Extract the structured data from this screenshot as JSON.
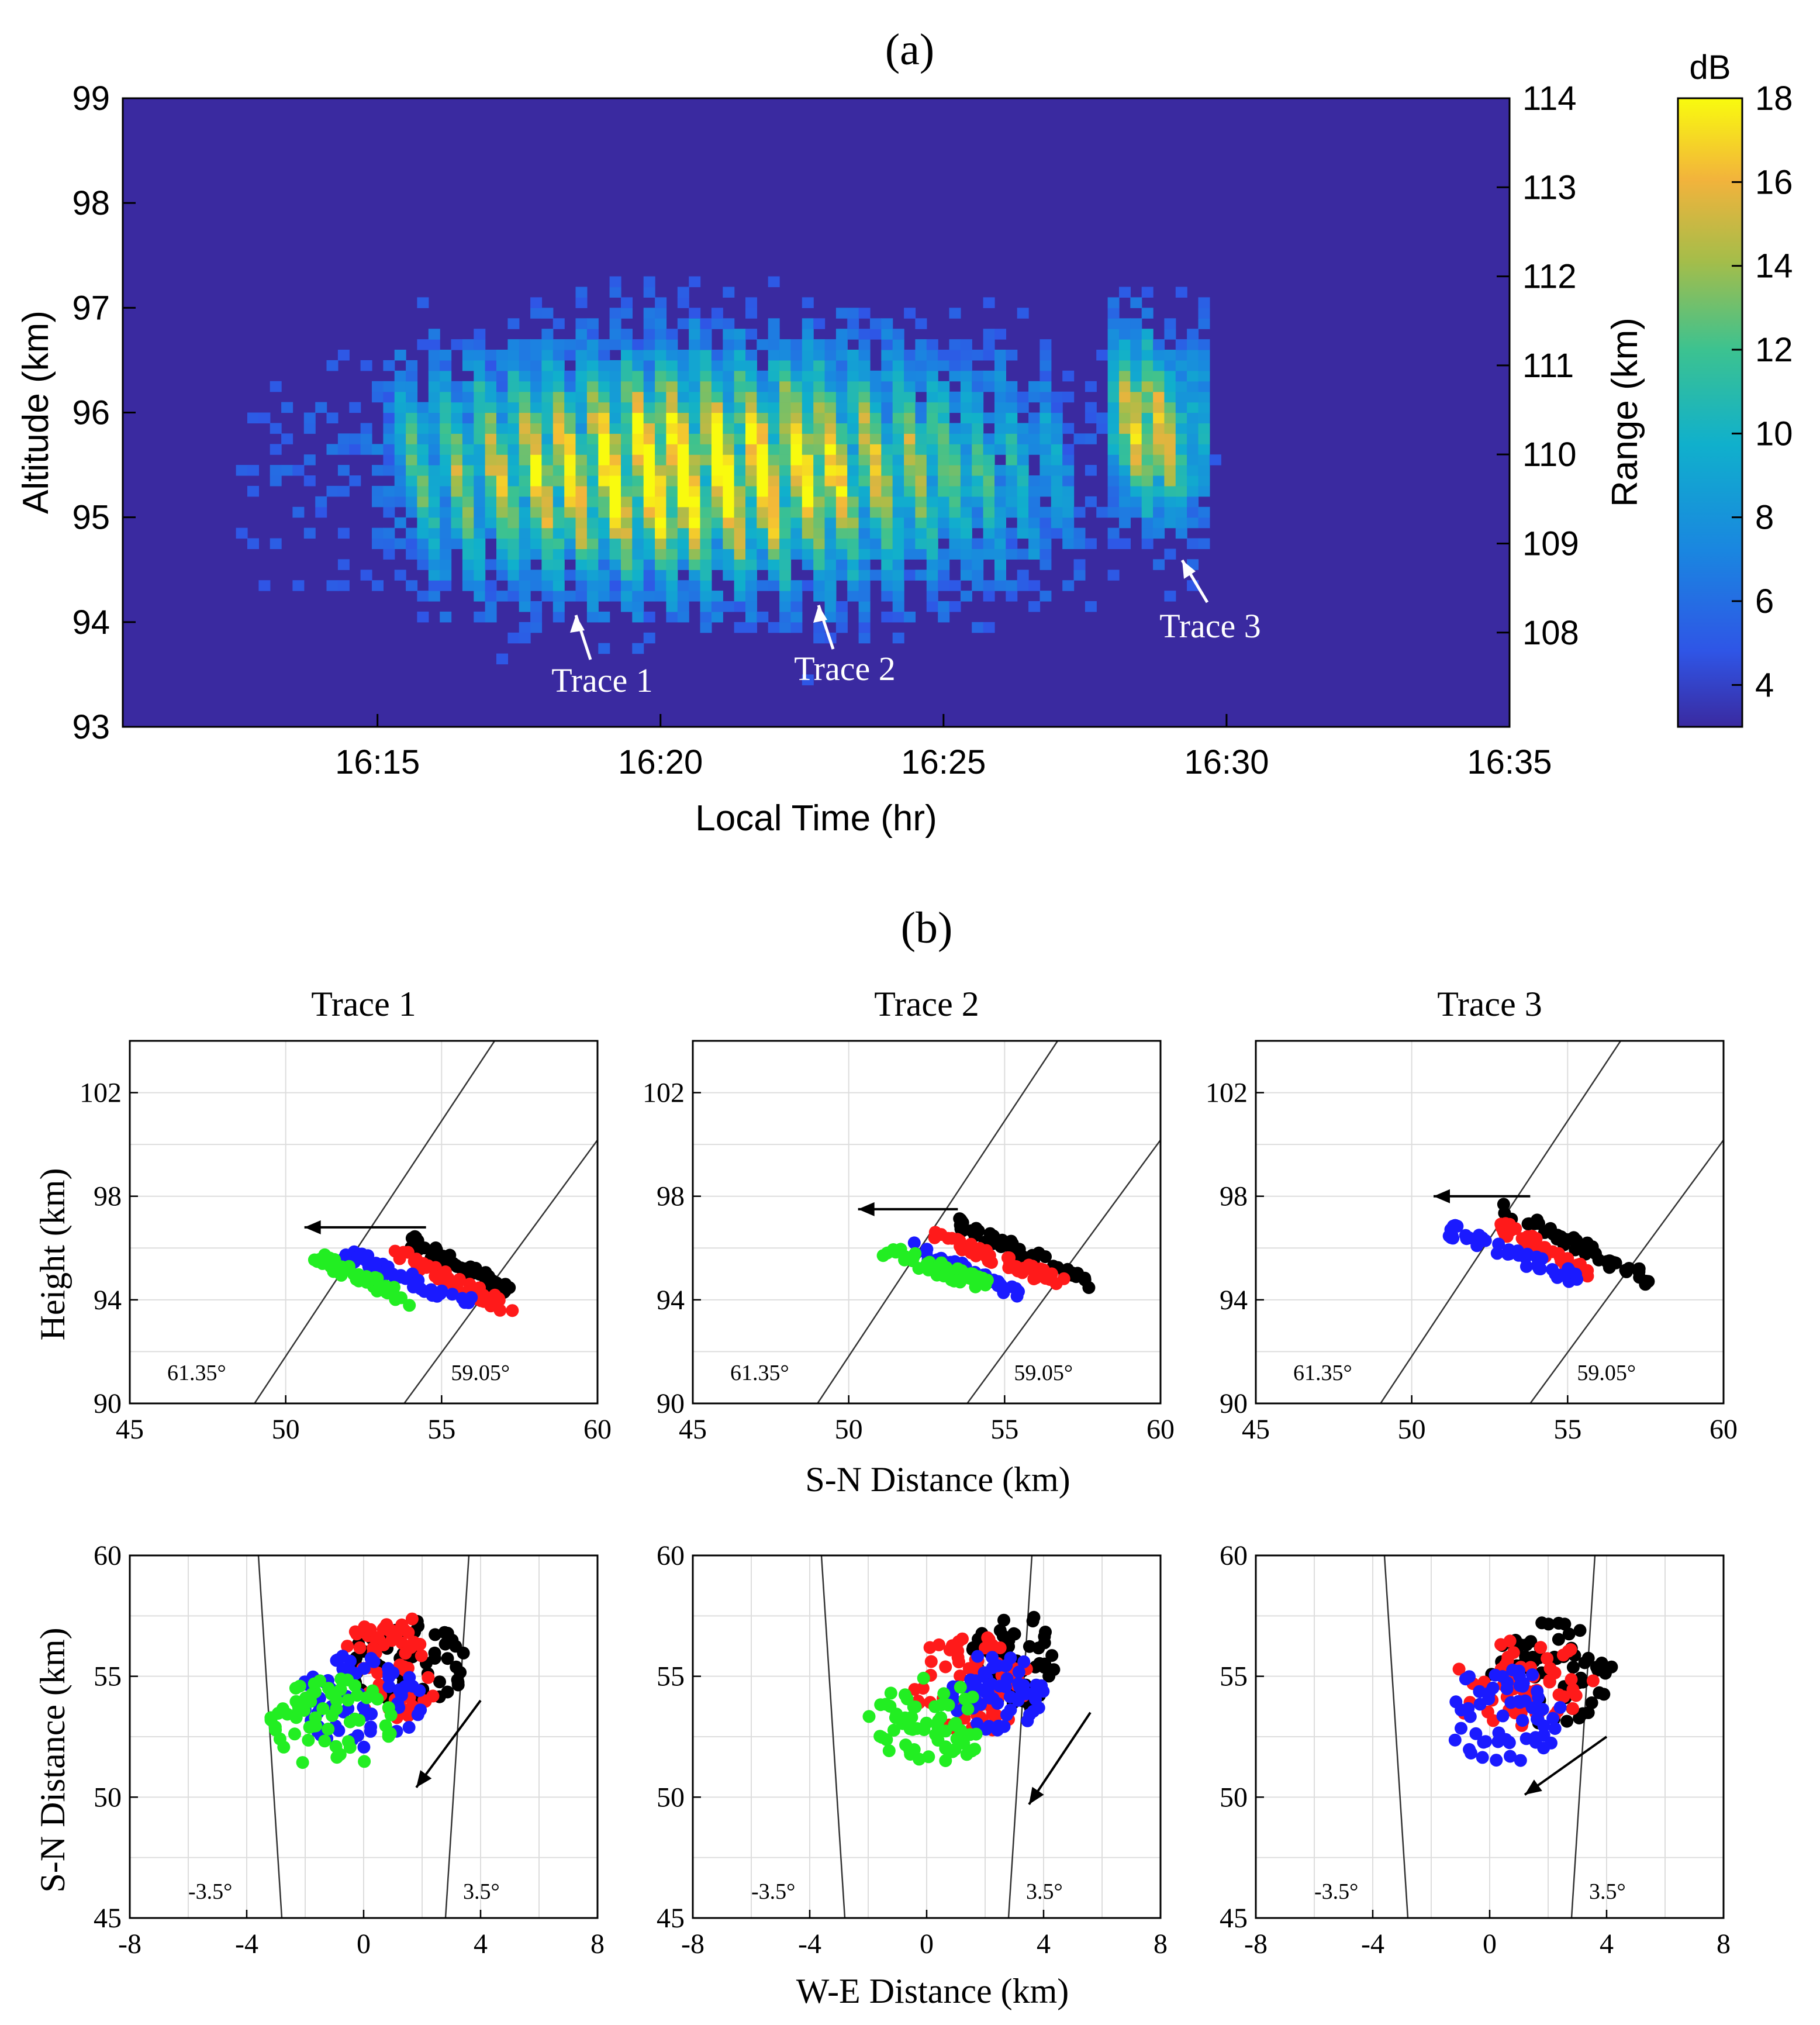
{
  "panel_a": {
    "label": "(a)",
    "left_axis": {
      "label": "Altitude (km)",
      "range": [
        93,
        99
      ],
      "ticks": [
        "93",
        "94",
        "95",
        "96",
        "97",
        "98",
        "99"
      ]
    },
    "right_axis": {
      "label": "Range (km)",
      "ticks": [
        "108",
        "109",
        "110",
        "111",
        "112",
        "113",
        "114"
      ],
      "values": [
        108,
        109,
        110,
        111,
        112,
        113,
        114
      ]
    },
    "x_axis": {
      "label": "Local Time (hr)",
      "ticks": [
        "16:15",
        "16:20",
        "16:25",
        "16:30",
        "16:35"
      ],
      "tick_minutes": [
        15,
        20,
        25,
        30,
        35
      ],
      "range_minutes": [
        10.5,
        35
      ]
    },
    "colorbar": {
      "label": "dB",
      "range": [
        3,
        18
      ],
      "ticks": [
        "4",
        "6",
        "8",
        "10",
        "12",
        "14",
        "16",
        "18"
      ],
      "tick_values": [
        4,
        6,
        8,
        10,
        12,
        14,
        16,
        18
      ]
    },
    "annotations": [
      {
        "text": "Trace 1"
      },
      {
        "text": "Trace 2"
      },
      {
        "text": "Trace 3"
      }
    ]
  },
  "panel_b": {
    "label": "(b)",
    "titles": [
      "Trace 1",
      "Trace 2",
      "Trace 3"
    ],
    "top_row": {
      "xlabel": "S-N Distance (km)",
      "ylabel": "Height (km)",
      "xticks": [
        "45",
        "50",
        "55",
        "60"
      ],
      "yticks": [
        "90",
        "94",
        "98",
        "102"
      ],
      "beam_labels": [
        "61.35°",
        "59.05°"
      ]
    },
    "bottom_row": {
      "xlabel": "W-E Distance (km)",
      "ylabel": "S-N Distance (km)",
      "xticks": [
        "-8",
        "-4",
        "0",
        "4",
        "8"
      ],
      "yticks": [
        "45",
        "50",
        "55",
        "60"
      ],
      "beam_labels": [
        "-3.5°",
        "3.5°"
      ]
    }
  },
  "colors": {
    "background": "#3a2aa0",
    "black": "#000000",
    "red": "#ff1a1a",
    "blue": "#1a1aff",
    "green": "#22ee22"
  },
  "chart_data": [
    {
      "type": "heatmap",
      "title": "(a)",
      "xlabel": "Local Time (hr)",
      "ylabel": "Altitude (km)",
      "y2label": "Range (km)",
      "xlim": [
        "16:10:30",
        "16:35:00"
      ],
      "ylim": [
        93,
        99
      ],
      "colorbar_label": "dB",
      "clim": [
        3,
        18
      ],
      "features": [
        {
          "name": "Trace 1",
          "time": "16:18:20",
          "altitude": 94.0
        },
        {
          "name": "Trace 2",
          "time": "16:22:40",
          "altitude": 94.2
        },
        {
          "name": "Trace 3",
          "time": "16:29:10",
          "altitude": 94.6
        }
      ]
    },
    {
      "type": "scatter",
      "title": "Trace 1",
      "xlabel": "S-N Distance (km)",
      "ylabel": "Height (km)",
      "xlim": [
        45,
        60
      ],
      "ylim": [
        90,
        104
      ],
      "series": [
        {
          "color": "black",
          "x_range": [
            54.0,
            57.2
          ],
          "y_range": [
            94.3,
            96.3
          ]
        },
        {
          "color": "red",
          "x_range": [
            53.2,
            57.4
          ],
          "y_range": [
            93.5,
            96.0
          ]
        },
        {
          "color": "blue",
          "x_range": [
            51.8,
            56.0
          ],
          "y_range": [
            93.8,
            95.9
          ]
        },
        {
          "color": "green",
          "x_range": [
            50.9,
            54.0
          ],
          "y_range": [
            94.0,
            95.7
          ]
        }
      ]
    },
    {
      "type": "scatter",
      "title": "Trace 2",
      "xlabel": "S-N Distance (km)",
      "ylabel": "Height (km)",
      "xlim": [
        45,
        60
      ],
      "ylim": [
        90,
        104
      ],
      "series": [
        {
          "color": "black",
          "x_range": [
            53.3,
            57.8
          ],
          "y_range": [
            94.6,
            97.1
          ]
        },
        {
          "color": "red",
          "x_range": [
            52.7,
            56.9
          ],
          "y_range": [
            94.6,
            96.5
          ]
        },
        {
          "color": "blue",
          "x_range": [
            52.0,
            55.6
          ],
          "y_range": [
            94.2,
            96.0
          ]
        },
        {
          "color": "green",
          "x_range": [
            51.0,
            54.5
          ],
          "y_range": [
            94.5,
            96.0
          ]
        }
      ]
    },
    {
      "type": "scatter",
      "title": "Trace 3",
      "xlabel": "S-N Distance (km)",
      "ylabel": "Height (km)",
      "xlim": [
        45,
        60
      ],
      "ylim": [
        90,
        104
      ],
      "series": [
        {
          "color": "black",
          "x_range": [
            52.9,
            57.6
          ],
          "y_range": [
            94.8,
            97.5
          ]
        },
        {
          "color": "red",
          "x_range": [
            52.6,
            55.7
          ],
          "y_range": [
            95.0,
            97.0
          ]
        },
        {
          "color": "blue",
          "x_range": [
            51.2,
            55.3
          ],
          "y_range": [
            94.8,
            96.7
          ]
        }
      ]
    },
    {
      "type": "scatter",
      "xlabel": "W-E Distance (km)",
      "ylabel": "S-N Distance (km)",
      "xlim": [
        -8,
        8
      ],
      "ylim": [
        45,
        60
      ],
      "series": [
        {
          "color": "black",
          "x_range": [
            -0.5,
            3.5
          ],
          "y_range": [
            53.6,
            57.4
          ]
        },
        {
          "color": "red",
          "x_range": [
            -1.0,
            3.0
          ],
          "y_range": [
            53.1,
            57.5
          ]
        },
        {
          "color": "blue",
          "x_range": [
            -2.3,
            2.0
          ],
          "y_range": [
            52.0,
            56.0
          ]
        },
        {
          "color": "green",
          "x_range": [
            -3.2,
            1.0
          ],
          "y_range": [
            51.1,
            55.0
          ]
        }
      ]
    },
    {
      "type": "scatter",
      "xlabel": "W-E Distance (km)",
      "ylabel": "S-N Distance (km)",
      "xlim": [
        -8,
        8
      ],
      "ylim": [
        45,
        60
      ],
      "series": [
        {
          "color": "black",
          "x_range": [
            1.5,
            4.5
          ],
          "y_range": [
            53.5,
            57.8
          ]
        },
        {
          "color": "red",
          "x_range": [
            -0.5,
            3.5
          ],
          "y_range": [
            52.6,
            56.8
          ]
        },
        {
          "color": "blue",
          "x_range": [
            0.8,
            4.0
          ],
          "y_range": [
            52.5,
            56.0
          ]
        },
        {
          "color": "green",
          "x_range": [
            -2.0,
            2.1
          ],
          "y_range": [
            51.3,
            55.0
          ]
        }
      ]
    },
    {
      "type": "scatter",
      "xlabel": "W-E Distance (km)",
      "ylabel": "S-N Distance (km)",
      "xlim": [
        -8,
        8
      ],
      "ylim": [
        45,
        60
      ],
      "series": [
        {
          "color": "black",
          "x_range": [
            0,
            4.2
          ],
          "y_range": [
            53.0,
            57.4
          ]
        },
        {
          "color": "red",
          "x_range": [
            -1.5,
            3.8
          ],
          "y_range": [
            52.8,
            56.5
          ]
        },
        {
          "color": "blue",
          "x_range": [
            -1.5,
            2.5
          ],
          "y_range": [
            51.4,
            55.4
          ]
        }
      ]
    }
  ]
}
